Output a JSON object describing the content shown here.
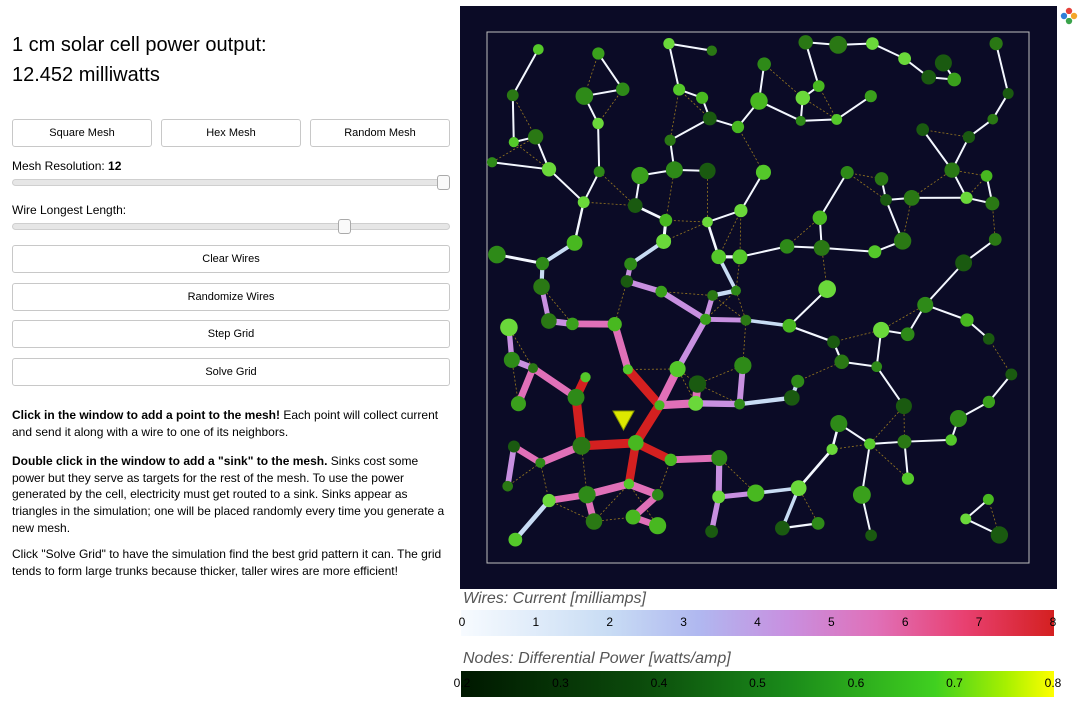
{
  "power": {
    "label": "1 cm solar cell power output:",
    "value": "12.452 milliwatts"
  },
  "mesh_buttons": {
    "square": "Square Mesh",
    "hex": "Hex Mesh",
    "random": "Random Mesh"
  },
  "resolution": {
    "label": "Mesh Resolution: ",
    "value": "12",
    "fraction": 1.0
  },
  "wire_length": {
    "label": "Wire Longest Length:",
    "fraction": 0.75
  },
  "actions": {
    "clear": "Clear Wires",
    "randomize": "Randomize Wires",
    "step": "Step Grid",
    "solve": "Solve Grid"
  },
  "instructions": {
    "p1_bold": "Click in the window to add a point to the mesh!",
    "p1_rest": " Each point will collect current and send it along with a wire to one of its neighbors.",
    "p2_bold": "Double click in the window to add a \"sink\" to the mesh.",
    "p2_rest": " Sinks cost some power but they serve as targets for the rest of the mesh. To use the power generated by the cell, electricity must get routed to a sink. Sinks appear as triangles in the simulation; one will be placed randomly every time you generate a new mesh.",
    "p3": "Click \"Solve Grid\" to have the simulation find the best grid pattern it can. The grid tends to form large trunks because thicker, taller wires are more efficient!"
  },
  "wires_colorbar": {
    "title": "Wires: Current [milliamps]",
    "ticks": [
      "0",
      "1",
      "2",
      "3",
      "4",
      "5",
      "6",
      "7",
      "8"
    ]
  },
  "nodes_colorbar": {
    "title": "Nodes: Differential Power [watts/amp]",
    "ticks": [
      "0.2",
      "0.3",
      "0.4",
      "0.5",
      "0.6",
      "0.7",
      "0.8"
    ]
  },
  "colors": {
    "canvas_bg": "#0b0b26",
    "wire_low": "#f7fbff",
    "wire_high": "#d62020",
    "node_low": "#0a1f0a",
    "node_high": "#ffff00"
  }
}
